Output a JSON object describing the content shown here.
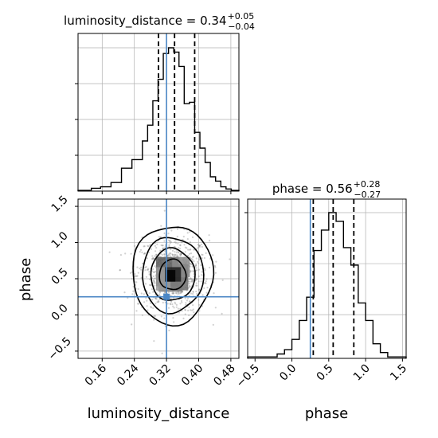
{
  "colors": {
    "truth": "#4a86c5",
    "hist": "#000000",
    "grid": "#b0b0b0",
    "scatter": "#7a7a7a"
  },
  "panel_titles": {
    "lum": {
      "prefix": "luminosity_distance = 0.34",
      "sup": "+0.05",
      "sub": "−0.04"
    },
    "phase": {
      "prefix": "phase = 0.56",
      "sup": "+0.28",
      "sub": "−0.27"
    }
  },
  "axis_labels": {
    "x_lum": "luminosity_distance",
    "x_phase": "phase",
    "y_phase": "phase"
  },
  "chart_data": [
    {
      "type": "histogram",
      "parameter": "luminosity_distance",
      "title": "luminosity_distance = 0.34 +0.05 −0.04",
      "xlim": [
        0.1,
        0.5
      ],
      "bin_edges": [
        0.1,
        0.133,
        0.156,
        0.182,
        0.208,
        0.234,
        0.26,
        0.273,
        0.286,
        0.299,
        0.312,
        0.325,
        0.338,
        0.351,
        0.364,
        0.377,
        0.39,
        0.403,
        0.416,
        0.429,
        0.442,
        0.455,
        0.468,
        0.481,
        0.5
      ],
      "density": [
        0.005,
        0.02,
        0.03,
        0.06,
        0.16,
        0.22,
        0.35,
        0.46,
        0.63,
        0.78,
        0.96,
        1.0,
        0.97,
        0.87,
        0.61,
        0.62,
        0.41,
        0.3,
        0.2,
        0.1,
        0.07,
        0.03,
        0.015,
        0.005
      ],
      "quantiles": [
        0.3,
        0.34,
        0.39
      ],
      "truth": 0.32,
      "xticks": [
        "0.16",
        "0.24",
        "0.32",
        "0.40",
        "0.48"
      ],
      "grid": true
    },
    {
      "type": "histogram",
      "parameter": "phase",
      "title": "phase = 0.56 +0.28 −0.27",
      "xlim": [
        -0.6,
        1.55
      ],
      "bin_edges": [
        -0.6,
        -0.2,
        -0.1,
        0.0,
        0.1,
        0.2,
        0.3,
        0.4,
        0.5,
        0.6,
        0.7,
        0.8,
        0.9,
        1.0,
        1.1,
        1.2,
        1.3,
        1.55
      ],
      "density": [
        0.01,
        0.03,
        0.06,
        0.13,
        0.26,
        0.42,
        0.74,
        0.88,
        1.0,
        0.94,
        0.76,
        0.64,
        0.38,
        0.26,
        0.1,
        0.04,
        0.01
      ],
      "quantiles": [
        0.29,
        0.56,
        0.84
      ],
      "truth": 0.25,
      "xticks": [
        "−0.5",
        "0.0",
        "0.5",
        "1.0",
        "1.5"
      ],
      "grid": true
    },
    {
      "type": "scatter",
      "subtype": "2d-density-contour",
      "x_parameter": "luminosity_distance",
      "y_parameter": "phase",
      "xlim": [
        0.1,
        0.5
      ],
      "ylim": [
        -0.6,
        1.6
      ],
      "center": [
        0.335,
        0.555
      ],
      "contour_halfwidths": [
        [
          0.033,
          0.21
        ],
        [
          0.055,
          0.36
        ],
        [
          0.076,
          0.52
        ],
        [
          0.1,
          0.68
        ]
      ],
      "truth": [
        0.32,
        0.25
      ],
      "xticks": [
        "0.16",
        "0.24",
        "0.32",
        "0.40",
        "0.48"
      ],
      "yticks": [
        "−0.5",
        "0.0",
        "0.5",
        "1.0",
        "1.5"
      ],
      "xlabel": "luminosity_distance",
      "ylabel": "phase",
      "grid": true
    }
  ]
}
